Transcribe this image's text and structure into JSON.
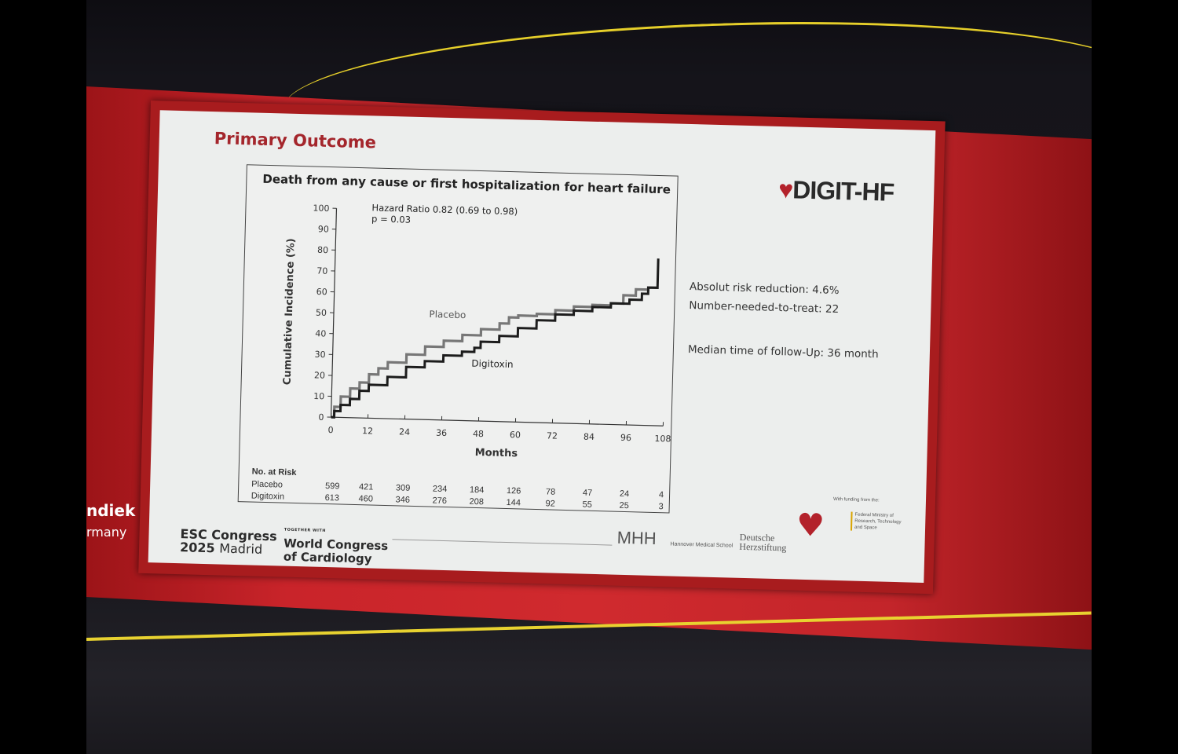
{
  "slide": {
    "title": "Primary Outcome",
    "logo": "DIGIT-HF",
    "stats": [
      "Absolut risk reduction: 4.6%",
      "Number-needed-to-treat: 22",
      "Median time of follow-Up: 36 month"
    ],
    "footer": {
      "esc_line1": "ESC Congress",
      "esc_line2_year": "2025",
      "esc_line2_city": "Madrid",
      "together": "TOGETHER WITH",
      "wcc_line1": "World Congress",
      "wcc_line2": "of Cardiology",
      "mhh": "MHH",
      "mhh_name": "Hannover Medical School",
      "dhs_line1": "Deutsche",
      "dhs_line2": "Herzstiftung",
      "funding": "With funding from the:",
      "ministry": "Federal Ministry of Research, Technology and Space"
    }
  },
  "speaker": {
    "name_fragment": "ndiek",
    "country_fragment": "rmany"
  },
  "chart_data": {
    "type": "line",
    "step": true,
    "title": "Death from any cause or first hospitalization for heart failure",
    "annotation_hr": "Hazard Ratio 0.82 (0.69  to  0.98)",
    "annotation_p": "p = 0.03",
    "xlabel": "Months",
    "ylabel": "Cumulative Incidence (%)",
    "xlim": [
      0,
      108
    ],
    "ylim": [
      0,
      100
    ],
    "xticks": [
      0,
      12,
      24,
      36,
      48,
      60,
      72,
      84,
      96,
      108
    ],
    "yticks": [
      0,
      10,
      20,
      30,
      40,
      50,
      60,
      70,
      80,
      90,
      100
    ],
    "grid": false,
    "series": [
      {
        "name": "Placebo",
        "color": "#777777",
        "x": [
          0,
          1,
          3,
          6,
          9,
          12,
          15,
          18,
          24,
          30,
          36,
          42,
          48,
          54,
          57,
          60,
          66,
          72,
          78,
          84,
          90,
          94,
          98,
          102,
          105
        ],
        "y": [
          0,
          5,
          10,
          14,
          17,
          21,
          24,
          27,
          31,
          35,
          38,
          41,
          44,
          47,
          50,
          51,
          52,
          54,
          56,
          57,
          58,
          62,
          65,
          66,
          66
        ]
      },
      {
        "name": "Digitoxin",
        "color": "#1c1c1c",
        "x": [
          0,
          1,
          3,
          6,
          9,
          12,
          18,
          24,
          30,
          36,
          42,
          46,
          48,
          54,
          60,
          66,
          72,
          78,
          84,
          90,
          96,
          100,
          102,
          105,
          105
        ],
        "y": [
          0,
          3,
          6,
          9,
          13,
          16,
          20,
          25,
          28,
          31,
          33,
          35,
          38,
          41,
          45,
          49,
          52,
          54,
          56,
          58,
          60,
          63,
          66,
          66,
          80
        ]
      }
    ],
    "risk_table": {
      "label": "No. at Risk",
      "rows": [
        {
          "name": "Placebo",
          "values": [
            "599",
            "421",
            "309",
            "234",
            "184",
            "126",
            "78",
            "47",
            "24",
            "4"
          ]
        },
        {
          "name": "Digitoxin",
          "values": [
            "613",
            "460",
            "346",
            "276",
            "208",
            "144",
            "92",
            "55",
            "25",
            "3"
          ]
        }
      ]
    }
  }
}
